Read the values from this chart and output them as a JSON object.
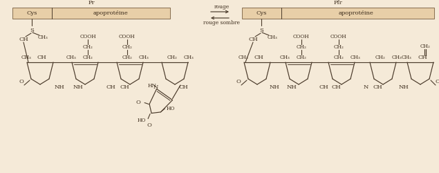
{
  "bg_color": "#f5ead8",
  "box_fill": "#e8cfa8",
  "box_edge": "#8B7355",
  "line_color": "#4a3a2a",
  "text_color": "#3a2a1a",
  "title_pr": "Pr",
  "title_pfr": "Pfr",
  "label_cys": "Cys",
  "label_apoprot": "apoprotéine",
  "label_rouge": "rouge",
  "label_rouge_sombre": "rouge sombre",
  "fs": 6.0,
  "fs_small": 5.2
}
